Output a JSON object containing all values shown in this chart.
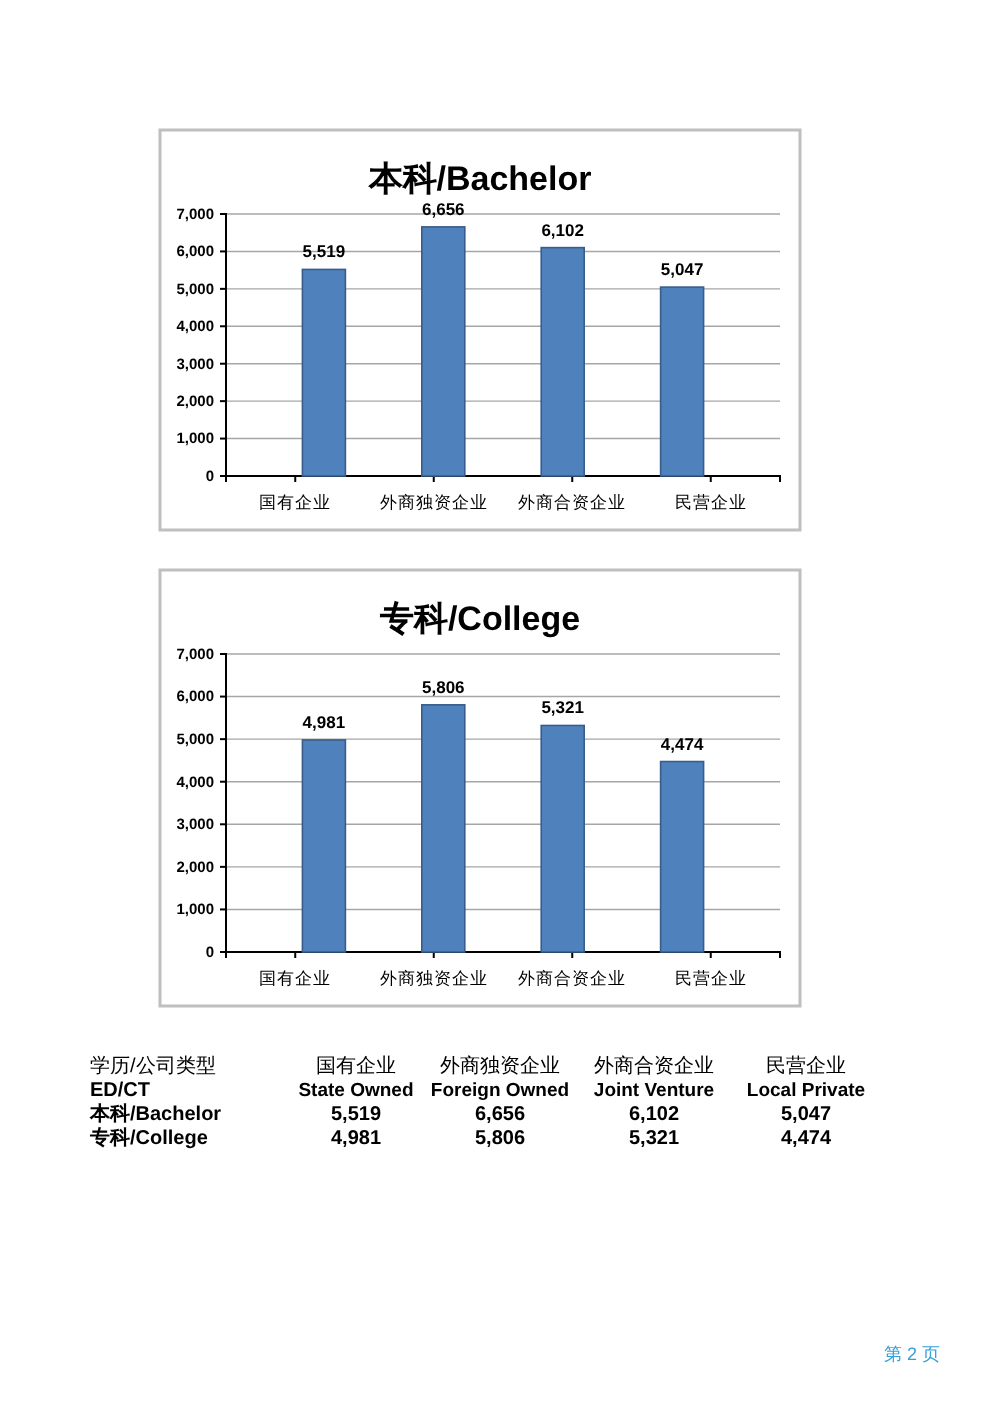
{
  "chart_data": [
    {
      "type": "bar",
      "title": "本科/Bachelor",
      "categories": [
        "国有企业",
        "外商独资企业",
        "外商合资企业",
        "民营企业"
      ],
      "values": [
        5519,
        6656,
        6102,
        5047
      ],
      "color": "#4f81bd",
      "ylim": [
        0,
        7000
      ],
      "yticks": [
        {
          "value": 0,
          "label": "0"
        },
        {
          "value": 1000,
          "label": "1,000"
        },
        {
          "value": 2000,
          "label": "2,000"
        },
        {
          "value": 3000,
          "label": "3,000"
        },
        {
          "value": 4000,
          "label": "4,000"
        },
        {
          "value": 5000,
          "label": "5,000"
        },
        {
          "value": 6000,
          "label": "6,000"
        },
        {
          "value": 7000,
          "label": "7,000"
        }
      ],
      "grid": "y",
      "value_labels": [
        "5,519",
        "6,656",
        "6,102",
        "5,047"
      ]
    },
    {
      "type": "bar",
      "title": "专科/College",
      "categories": [
        "国有企业",
        "外商独资企业",
        "外商合资企业",
        "民营企业"
      ],
      "values": [
        4981,
        5806,
        5321,
        4474
      ],
      "color": "#4f81bd",
      "ylim": [
        0,
        7000
      ],
      "yticks": [
        {
          "value": 0,
          "label": "0"
        },
        {
          "value": 1000,
          "label": "1,000"
        },
        {
          "value": 2000,
          "label": "2,000"
        },
        {
          "value": 3000,
          "label": "3,000"
        },
        {
          "value": 4000,
          "label": "4,000"
        },
        {
          "value": 5000,
          "label": "5,000"
        },
        {
          "value": 6000,
          "label": "6,000"
        },
        {
          "value": 7000,
          "label": "7,000"
        }
      ],
      "grid": "y",
      "value_labels": [
        "4,981",
        "5,806",
        "5,321",
        "4,474"
      ]
    },
    {
      "type": "other",
      "annotations": [
        "学历/公司类型",
        "国有企业",
        "外商独资企业",
        "外商合资企业",
        "民营企业",
        "ED/CT",
        "State Owned",
        "Foreign Owned",
        "Joint Venture",
        "Local Private",
        "本科/Bachelor",
        "5,519",
        "6,656",
        "6,102",
        "5,047",
        "专科/College",
        "4,981",
        "5,806",
        "5,321",
        "4,474",
        "第 2 页"
      ]
    }
  ]
}
